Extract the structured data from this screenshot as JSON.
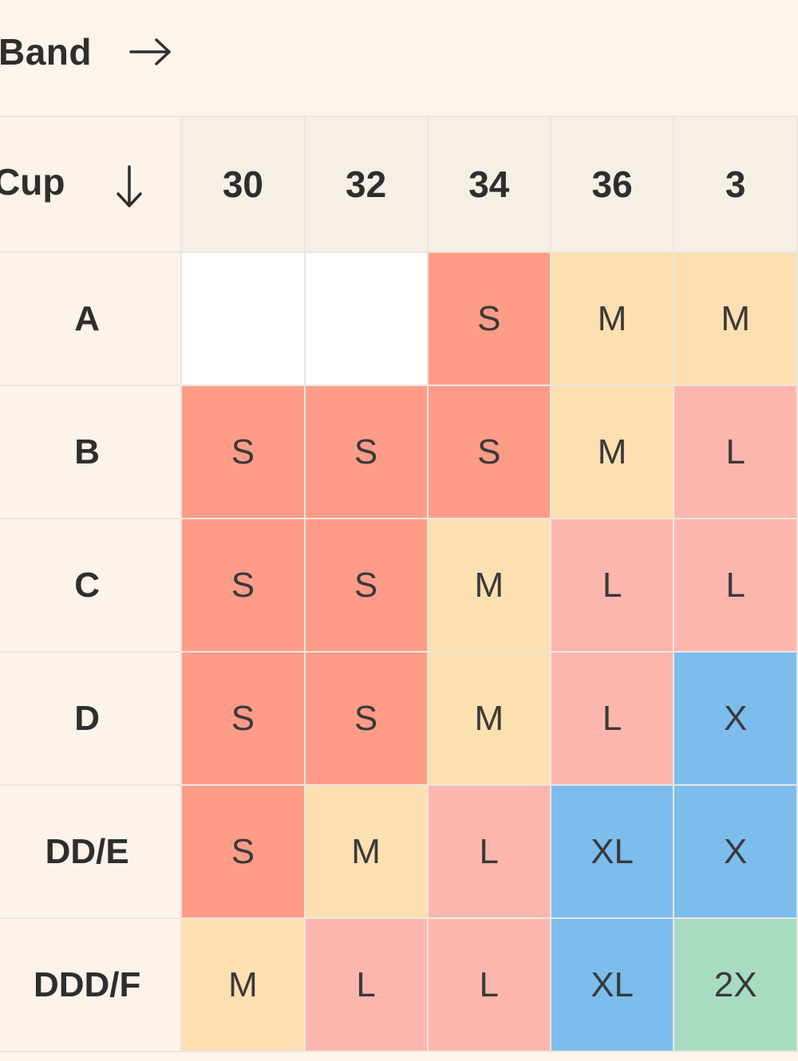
{
  "header": {
    "band_label": "Band",
    "band_arrow": "right-arrow-icon",
    "cup_label": "Cup",
    "cup_arrow": "down-arrow-icon"
  },
  "colors": {
    "background": "#fdf3eb",
    "header_cell": "#f5efe6",
    "empty": "#ffffff",
    "S": "#fe9c88",
    "M": "#fde0b0",
    "L": "#fdb6ad",
    "XL": "#7cbdee",
    "2XL": "#a8dcc2"
  },
  "bands": [
    "30",
    "32",
    "34",
    "36",
    "3"
  ],
  "rows": [
    {
      "cup": "A",
      "sizes": [
        "",
        "",
        "S",
        "M",
        "M"
      ]
    },
    {
      "cup": "B",
      "sizes": [
        "S",
        "S",
        "S",
        "M",
        "L"
      ]
    },
    {
      "cup": "C",
      "sizes": [
        "S",
        "S",
        "M",
        "L",
        "L"
      ]
    },
    {
      "cup": "D",
      "sizes": [
        "S",
        "S",
        "M",
        "L",
        "X"
      ]
    },
    {
      "cup": "DD/E",
      "sizes": [
        "S",
        "M",
        "L",
        "XL",
        "X"
      ]
    },
    {
      "cup": "DDD/F",
      "sizes": [
        "M",
        "L",
        "L",
        "XL",
        "2X"
      ]
    }
  ]
}
